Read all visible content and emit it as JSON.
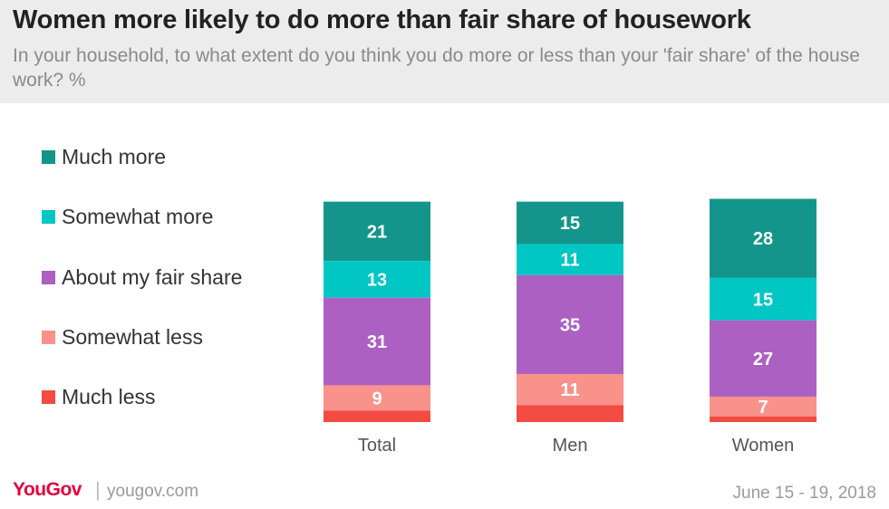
{
  "header": {
    "title": "Women more likely to do more than fair share of housework",
    "subtitle": "In your household, to what extent do you think you do more or less than your 'fair share' of the house work? %"
  },
  "chart_data": {
    "type": "bar",
    "stacked": true,
    "categories": [
      "Total",
      "Men",
      "Women"
    ],
    "series": [
      {
        "name": "Much more",
        "values": [
          21,
          15,
          28
        ],
        "color": "#13958b",
        "labels": [
          "21",
          "15",
          "28"
        ]
      },
      {
        "name": "Somewhat more",
        "values": [
          13,
          11,
          15
        ],
        "color": "#00c6c4",
        "labels": [
          "13",
          "11",
          "15"
        ]
      },
      {
        "name": "About my fair share",
        "values": [
          31,
          35,
          27
        ],
        "color": "#ab60c2",
        "labels": [
          "31",
          "35",
          "27"
        ]
      },
      {
        "name": "Somewhat less",
        "values": [
          9,
          11,
          7
        ],
        "color": "#f8928a",
        "labels": [
          "9",
          "11",
          "7"
        ]
      },
      {
        "name": "Much less",
        "values": [
          4,
          6,
          2
        ],
        "color": "#f24b41",
        "labels": [
          "",
          "",
          ""
        ]
      }
    ],
    "legend_position": "left"
  },
  "footer": {
    "logo": "YouGov",
    "separator": "|",
    "site": "yougov.com",
    "date": "June 15 - 19, 2018"
  },
  "colors": {
    "header_bg": "#ececec",
    "brand": "#e4003b"
  }
}
